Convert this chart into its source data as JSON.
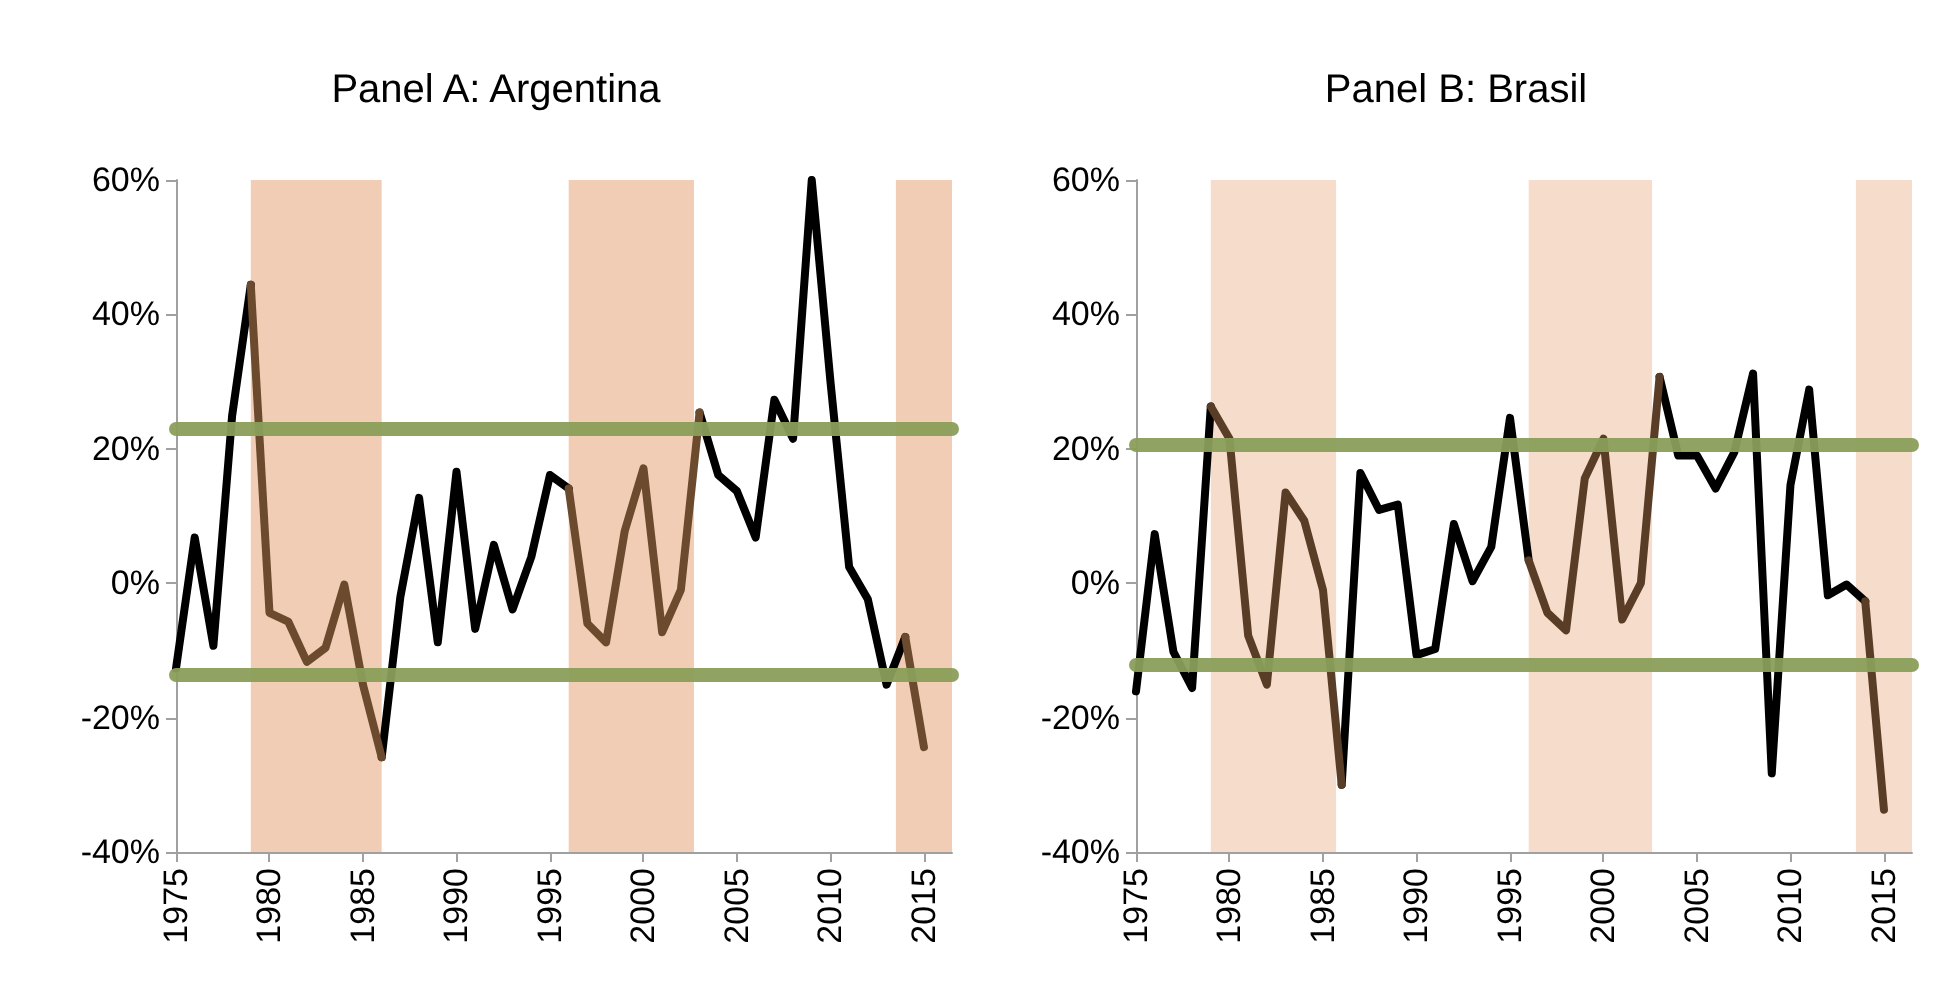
{
  "chart_data": [
    {
      "type": "line",
      "title": "Panel A: Argentina",
      "x": [
        1975,
        1976,
        1977,
        1978,
        1979,
        1980,
        1981,
        1982,
        1983,
        1984,
        1985,
        1986,
        1987,
        1988,
        1989,
        1990,
        1991,
        1992,
        1993,
        1994,
        1995,
        1996,
        1997,
        1998,
        1999,
        2000,
        2001,
        2002,
        2003,
        2004,
        2005,
        2006,
        2007,
        2008,
        2009,
        2010,
        2011,
        2012,
        2013,
        2014,
        2015
      ],
      "series": [
        {
          "color": "#000000",
          "values": [
            -12.7,
            6.8,
            -9.3,
            24.9,
            44.4,
            null,
            null,
            null,
            null,
            null,
            null,
            -25.9,
            -2,
            12.7,
            -8.8,
            16.6,
            -6.8,
            5.7,
            -3.9,
            3.9,
            16.1,
            14.1,
            null,
            null,
            null,
            null,
            null,
            null,
            25.4,
            16.1,
            13.7,
            6.8,
            27.3,
            21.5,
            60,
            30,
            2.4,
            -2.4,
            -15.1,
            -8,
            null
          ]
        },
        {
          "color": "#6b4a2e",
          "values": [
            null,
            null,
            null,
            null,
            44.4,
            -4.4,
            -5.7,
            -11.7,
            -9.6,
            -0.2,
            -15.1,
            -25.9,
            null,
            null,
            null,
            null,
            null,
            null,
            null,
            null,
            null,
            14.1,
            -6,
            -8.8,
            7.8,
            17.1,
            -7.3,
            -1,
            25.4,
            null,
            null,
            null,
            null,
            null,
            null,
            null,
            null,
            null,
            null,
            -8,
            -24.4
          ]
        }
      ],
      "xlim": [
        1975,
        2016.5
      ],
      "xticks": [
        1975,
        1980,
        1985,
        1990,
        1995,
        2000,
        2005,
        2010,
        2015
      ],
      "ylim": [
        -40,
        60
      ],
      "yticks": [
        {
          "value": -40,
          "label": "-40%"
        },
        {
          "value": -20,
          "label": "-20%"
        },
        {
          "value": 0,
          "label": "0%"
        },
        {
          "value": 20,
          "label": "20%"
        },
        {
          "value": 40,
          "label": "40%"
        },
        {
          "value": 60,
          "label": "60%"
        }
      ],
      "ref_lines": [
        {
          "axis": "y",
          "value": 22.9,
          "color": "#8a9e5a"
        },
        {
          "axis": "y",
          "value": -13.5,
          "color": "#8a9e5a"
        }
      ],
      "bands": [
        {
          "axis": "x",
          "from": 1979,
          "to": 1986,
          "color": "#f2cdb5"
        },
        {
          "axis": "x",
          "from": 1996,
          "to": 2002.7,
          "color": "#f2cdb5"
        },
        {
          "axis": "x",
          "from": 2013.5,
          "to": 2016.5,
          "color": "#f2cdb5"
        }
      ],
      "grid": false,
      "marker": "none",
      "line_style": "solid"
    },
    {
      "type": "line",
      "title": "Panel B: Brasil",
      "x": [
        1975,
        1976,
        1977,
        1978,
        1979,
        1980,
        1981,
        1982,
        1983,
        1984,
        1985,
        1986,
        1987,
        1988,
        1989,
        1990,
        1991,
        1992,
        1993,
        1994,
        1995,
        1996,
        1997,
        1998,
        1999,
        2000,
        2001,
        2002,
        2003,
        2004,
        2005,
        2006,
        2007,
        2008,
        2009,
        2010,
        2011,
        2012,
        2013,
        2014,
        2015
      ],
      "series": [
        {
          "color": "#000000",
          "values": [
            -16.1,
            7.3,
            -10.2,
            -15.6,
            26.3,
            null,
            null,
            null,
            null,
            null,
            null,
            -30,
            16.4,
            10.9,
            11.7,
            -10.7,
            -9.8,
            8.8,
            0.3,
            5.4,
            24.6,
            3.4,
            null,
            null,
            null,
            null,
            null,
            null,
            30.7,
            19,
            19,
            14.1,
            19.5,
            31.2,
            -28.3,
            14.6,
            28.8,
            -1.8,
            -0.2,
            -2.7,
            null
          ]
        },
        {
          "color": "#5a3d26",
          "values": [
            null,
            null,
            null,
            null,
            26.3,
            21.5,
            -7.8,
            -15.1,
            13.5,
            9.3,
            -1,
            -30,
            null,
            null,
            null,
            null,
            null,
            null,
            null,
            null,
            null,
            3.4,
            -4.4,
            -7,
            15.6,
            21.5,
            -5.4,
            0,
            30.7,
            null,
            null,
            null,
            null,
            null,
            null,
            null,
            null,
            null,
            null,
            -2.7,
            -33.7
          ]
        }
      ],
      "xlim": [
        1975,
        2016.5
      ],
      "xticks": [
        1975,
        1980,
        1985,
        1990,
        1995,
        2000,
        2005,
        2010,
        2015
      ],
      "ylim": [
        -40,
        60
      ],
      "yticks": [
        {
          "value": -40,
          "label": "-40%"
        },
        {
          "value": -20,
          "label": "-20%"
        },
        {
          "value": 0,
          "label": "0%"
        },
        {
          "value": 20,
          "label": "20%"
        },
        {
          "value": 40,
          "label": "40%"
        },
        {
          "value": 60,
          "label": "60%"
        }
      ],
      "ref_lines": [
        {
          "axis": "y",
          "value": 20.7,
          "color": "#8a9e5a"
        },
        {
          "axis": "y",
          "value": -12.2,
          "color": "#8a9e5a"
        }
      ],
      "bands": [
        {
          "axis": "x",
          "from": 1979,
          "to": 1985.7,
          "color": "#f5dccb"
        },
        {
          "axis": "x",
          "from": 1996,
          "to": 2002.6,
          "color": "#f5dccb"
        },
        {
          "axis": "x",
          "from": 2013.5,
          "to": 2016.5,
          "color": "#f5dccb"
        }
      ],
      "grid": false,
      "marker": "none",
      "line_style": "solid"
    }
  ]
}
